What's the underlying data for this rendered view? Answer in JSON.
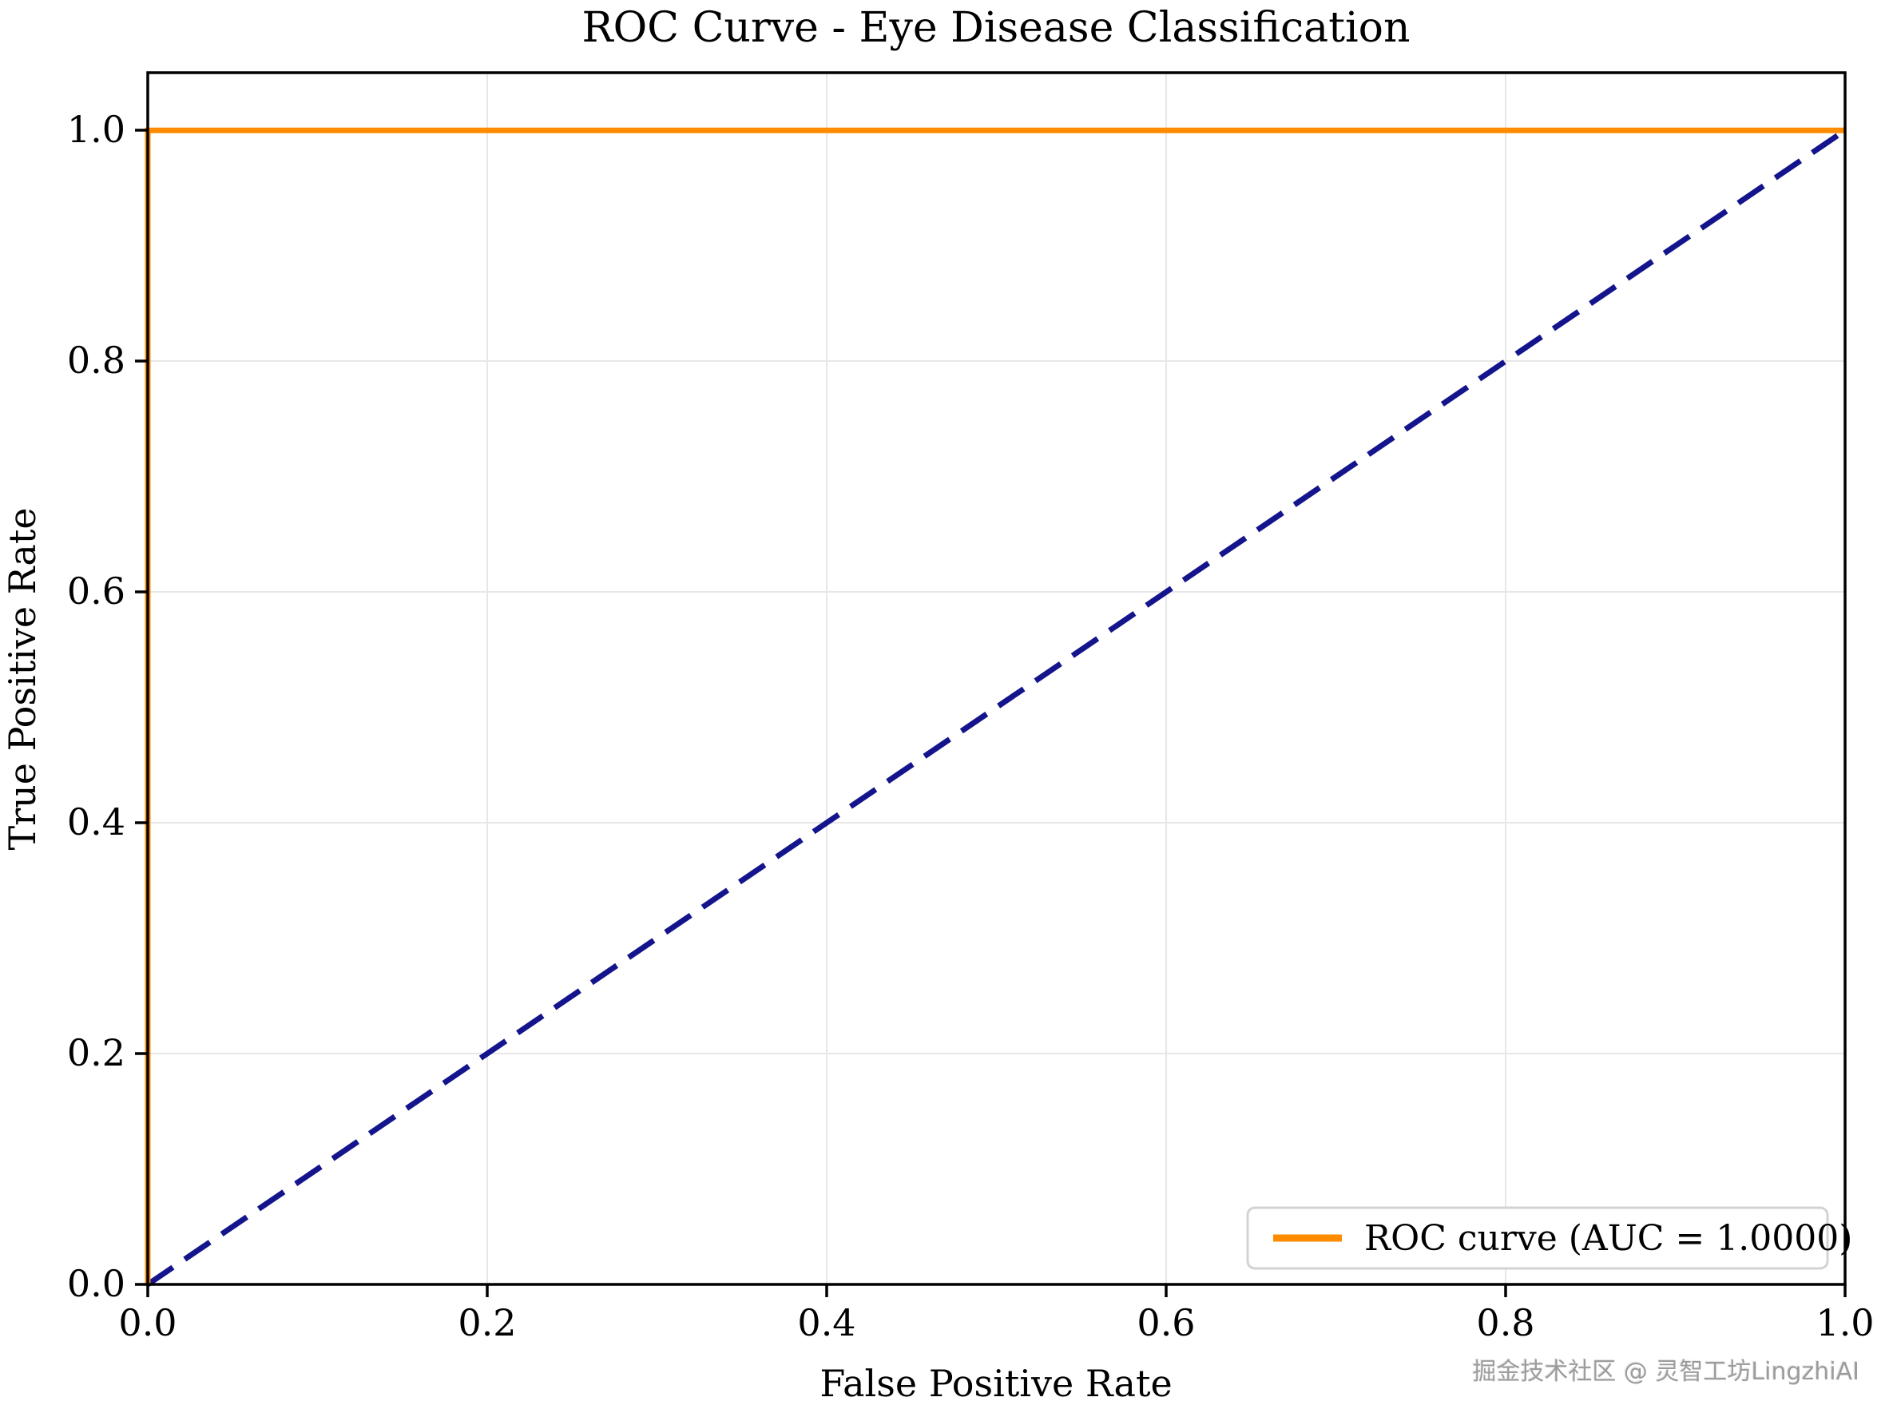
{
  "watermark": {
    "text": "掘金技术社区 @ 灵智工坊LingzhiAI"
  },
  "chart_data": {
    "type": "line",
    "title": "ROC Curve - Eye Disease Classification",
    "xlabel": "False Positive Rate",
    "ylabel": "True Positive Rate",
    "xlim": [
      0.0,
      1.0
    ],
    "ylim": [
      0.0,
      1.05
    ],
    "grid": true,
    "x_ticks": [
      0.0,
      0.2,
      0.4,
      0.6,
      0.8,
      1.0
    ],
    "y_ticks": [
      0.0,
      0.2,
      0.4,
      0.6,
      0.8,
      1.0
    ],
    "x_tick_labels": [
      "0.0",
      "0.2",
      "0.4",
      "0.6",
      "0.8",
      "1.0"
    ],
    "y_tick_labels": [
      "0.0",
      "0.2",
      "0.4",
      "0.6",
      "0.8",
      "1.0"
    ],
    "auc": "1.0000",
    "legend": {
      "position": "lower right",
      "entries": [
        {
          "label": "ROC curve (AUC = 1.0000)",
          "color": "#FF8C00",
          "style": "solid"
        }
      ]
    },
    "series": [
      {
        "name": "chance-diagonal",
        "color": "#14148C",
        "style": "dashed",
        "dash": "38 18",
        "x": [
          0.0,
          1.0
        ],
        "y": [
          0.0,
          1.0
        ]
      },
      {
        "name": "ROC curve (AUC = 1.0000)",
        "color": "#FF8C00",
        "style": "solid",
        "dash": null,
        "x": [
          0.0,
          0.0,
          1.0
        ],
        "y": [
          0.0,
          1.0,
          1.0
        ]
      }
    ]
  }
}
